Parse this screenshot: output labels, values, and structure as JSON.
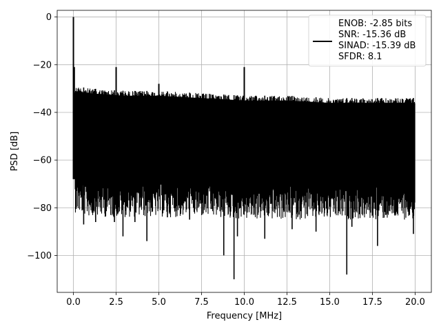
{
  "chart_data": {
    "type": "line",
    "title": "",
    "xlabel": "Frequency [MHz]",
    "ylabel": "PSD [dB]",
    "xlim": [
      -0.95,
      20.95
    ],
    "ylim": [
      -115.5,
      2.8
    ],
    "grid": true,
    "x_ticks": [
      0.0,
      2.5,
      5.0,
      7.5,
      10.0,
      12.5,
      15.0,
      17.5,
      20.0
    ],
    "x_tick_labels": [
      "0.0",
      "2.5",
      "5.0",
      "7.5",
      "10.0",
      "12.5",
      "15.0",
      "17.5",
      "20.0"
    ],
    "y_ticks": [
      0,
      -20,
      -40,
      -60,
      -80,
      -100
    ],
    "y_tick_labels": [
      "0",
      "−20",
      "−40",
      "−60",
      "−80",
      "−100"
    ],
    "legend": {
      "placement": "upper right",
      "entries": [
        "ENOB: -2.85 bits",
        "SNR: -15.36 dB",
        "SINAD: -15.39 dB",
        "SFDR: 8.1"
      ]
    },
    "series": [
      {
        "color": "#000000",
        "noise_band_upper": {
          "x": [
            0.1,
            1.0,
            3.0,
            5.0,
            7.5,
            10.0,
            12.5,
            15.0,
            17.5,
            20.0
          ],
          "y": [
            -29,
            -30,
            -31,
            -31,
            -32,
            -33,
            -33,
            -34,
            -34,
            -34
          ]
        },
        "noise_band_lower": {
          "x": [
            0.1,
            1.0,
            3.0,
            5.0,
            7.5,
            10.0,
            12.5,
            15.0,
            17.5,
            20.0
          ],
          "y": [
            -68,
            -70,
            -70,
            -70,
            -70,
            -71,
            -71,
            -71,
            -71,
            -71
          ]
        },
        "peaks": [
          {
            "x": 0.0,
            "y": 0
          },
          {
            "x": 0.05,
            "y": -21
          },
          {
            "x": 2.5,
            "y": -21
          },
          {
            "x": 5.0,
            "y": -28
          },
          {
            "x": 10.0,
            "y": -21
          }
        ],
        "dips": [
          {
            "x": 0.6,
            "y": -87
          },
          {
            "x": 1.3,
            "y": -86
          },
          {
            "x": 2.4,
            "y": -86
          },
          {
            "x": 2.9,
            "y": -92
          },
          {
            "x": 3.6,
            "y": -86
          },
          {
            "x": 4.3,
            "y": -94
          },
          {
            "x": 5.5,
            "y": -84
          },
          {
            "x": 6.8,
            "y": -85
          },
          {
            "x": 8.8,
            "y": -100
          },
          {
            "x": 9.4,
            "y": -110
          },
          {
            "x": 9.6,
            "y": -92
          },
          {
            "x": 11.2,
            "y": -93
          },
          {
            "x": 12.8,
            "y": -89
          },
          {
            "x": 14.2,
            "y": -90
          },
          {
            "x": 16.0,
            "y": -108
          },
          {
            "x": 16.3,
            "y": -88
          },
          {
            "x": 17.8,
            "y": -96
          },
          {
            "x": 19.9,
            "y": -91
          }
        ]
      }
    ]
  }
}
